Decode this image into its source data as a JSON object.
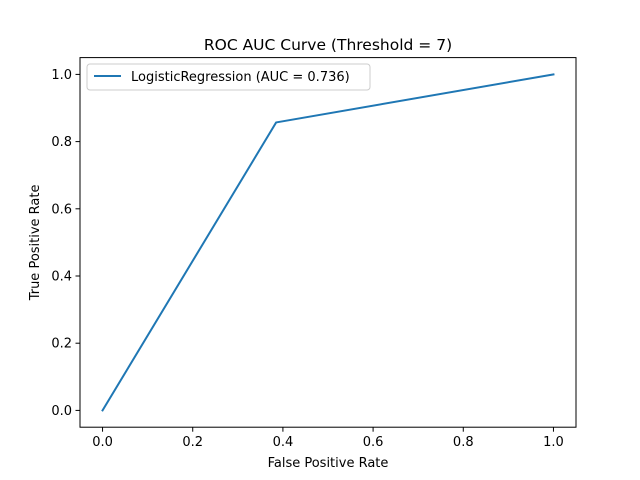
{
  "chart_data": {
    "type": "line",
    "title": "ROC AUC Curve (Threshold = 7)",
    "xlabel": "False Positive Rate",
    "ylabel": "True Positive Rate",
    "xlim": [
      -0.05,
      1.05
    ],
    "ylim": [
      -0.05,
      1.05
    ],
    "xticks": [
      0.0,
      0.2,
      0.4,
      0.6,
      0.8,
      1.0
    ],
    "xtick_labels": [
      "0.0",
      "0.2",
      "0.4",
      "0.6",
      "0.8",
      "1.0"
    ],
    "yticks": [
      0.0,
      0.2,
      0.4,
      0.6,
      0.8,
      1.0
    ],
    "ytick_labels": [
      "0.0",
      "0.2",
      "0.4",
      "0.6",
      "0.8",
      "1.0"
    ],
    "grid": false,
    "legend_position": "upper-left",
    "series": [
      {
        "name": "LogisticRegression (AUC = 0.736)",
        "color": "#1f77b4",
        "x": [
          0.0,
          0.385,
          1.0
        ],
        "y": [
          0.0,
          0.857,
          1.0
        ]
      }
    ]
  }
}
